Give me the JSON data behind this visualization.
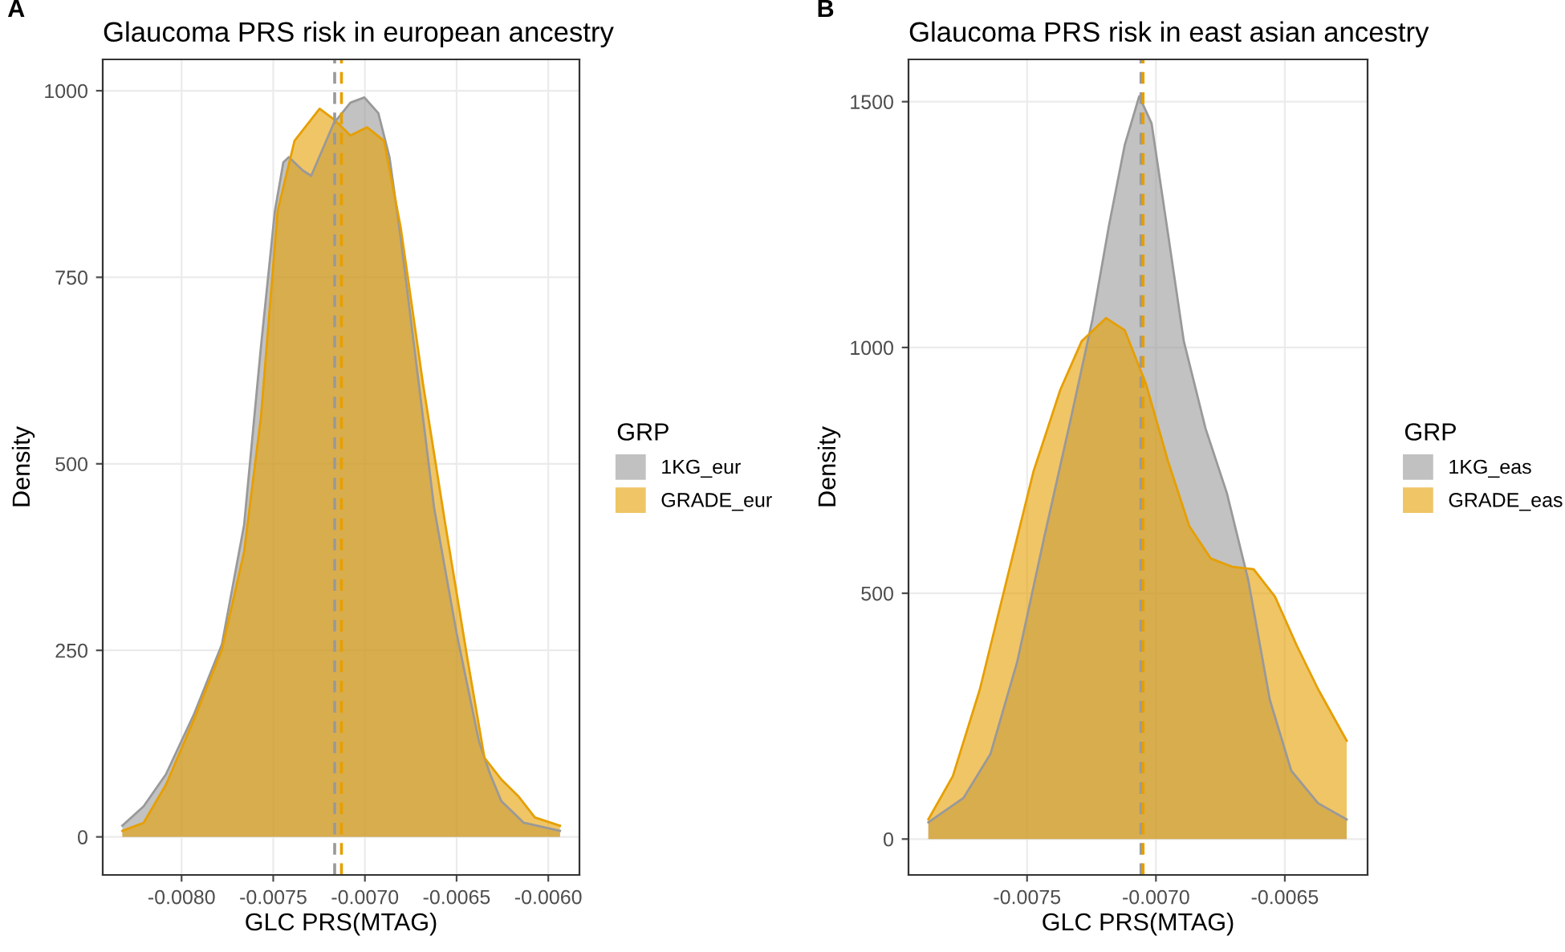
{
  "chart_data": [
    {
      "type": "area",
      "title": "Glaucoma PRS risk in european ancestry",
      "xlabel": "GLC PRS(MTAG)",
      "ylabel": "Density",
      "legend_title": "GRP",
      "legend": "right",
      "grid": true,
      "annotations": [
        "A"
      ],
      "xlim": [
        -0.00843,
        -0.00583
      ],
      "ylim": [
        -51,
        1042
      ],
      "xticks": [
        {
          "value": -0.008,
          "label": "-0.0080"
        },
        {
          "value": -0.0075,
          "label": "-0.0075"
        },
        {
          "value": -0.007,
          "label": "-0.0070"
        },
        {
          "value": -0.0065,
          "label": "-0.0065"
        },
        {
          "value": -0.006,
          "label": "-0.0060"
        }
      ],
      "yticks": [
        0,
        250,
        500,
        750,
        1000
      ],
      "series": [
        {
          "name": "1KG_eur",
          "color": "#999999",
          "x": [
            -0.008323,
            -0.008207,
            -0.008085,
            -0.007933,
            -0.00778,
            -0.007659,
            -0.007567,
            -0.007491,
            -0.007445,
            -0.007415,
            -0.007338,
            -0.007293,
            -0.007171,
            -0.007079,
            -0.007003,
            -0.006927,
            -0.006866,
            -0.006805,
            -0.006713,
            -0.006622,
            -0.0065,
            -0.006378,
            -0.006317,
            -0.006256,
            -0.006134,
            -0.005936
          ],
          "values": [
            15,
            41,
            84,
            164,
            258,
            418,
            657,
            839,
            904,
            911,
            893,
            886,
            956,
            984,
            991,
            970,
            911,
            803,
            621,
            440,
            273,
            128,
            84,
            48,
            19,
            8
          ]
        },
        {
          "name": "GRADE_eur",
          "color": "#E69F00",
          "x": [
            -0.008323,
            -0.008207,
            -0.008085,
            -0.007933,
            -0.00778,
            -0.007659,
            -0.007567,
            -0.007476,
            -0.007384,
            -0.007247,
            -0.007171,
            -0.007079,
            -0.006988,
            -0.006896,
            -0.006805,
            -0.006683,
            -0.006561,
            -0.006439,
            -0.006348,
            -0.006256,
            -0.006165,
            -0.006073,
            -0.005936
          ],
          "values": [
            8,
            19,
            70,
            157,
            251,
            382,
            563,
            839,
            933,
            976,
            962,
            940,
            951,
            933,
            817,
            607,
            418,
            236,
            106,
            77,
            55,
            26,
            15
          ]
        }
      ],
      "ref_lines": [
        {
          "axis": "x",
          "value": -0.007165,
          "color": "#999999",
          "line_style": "dashed"
        },
        {
          "axis": "x",
          "value": -0.007128,
          "color": "#E69F00",
          "line_style": "dashed"
        }
      ]
    },
    {
      "type": "area",
      "title": "Glaucoma PRS risk in east asian ancestry",
      "xlabel": "GLC PRS(MTAG)",
      "ylabel": "Density",
      "legend_title": "GRP",
      "legend": "right",
      "grid": true,
      "annotations": [
        "B"
      ],
      "xlim": [
        -0.00796,
        -0.006179
      ],
      "ylim": [
        -73,
        1586
      ],
      "xticks": [
        {
          "value": -0.0075,
          "label": "-0.0075"
        },
        {
          "value": -0.007,
          "label": "-0.0070"
        },
        {
          "value": -0.0065,
          "label": "-0.0065"
        }
      ],
      "yticks": [
        0,
        500,
        1000,
        1500
      ],
      "series": [
        {
          "name": "1KG_eas",
          "color": "#999999",
          "x": [
            -0.007883,
            -0.007746,
            -0.007642,
            -0.007538,
            -0.007433,
            -0.007329,
            -0.007246,
            -0.007183,
            -0.007121,
            -0.007065,
            -0.007017,
            -0.006954,
            -0.006892,
            -0.006808,
            -0.006725,
            -0.006642,
            -0.006558,
            -0.006475,
            -0.006371,
            -0.00626
          ],
          "values": [
            34,
            84,
            173,
            361,
            615,
            858,
            1058,
            1246,
            1412,
            1511,
            1456,
            1234,
            1013,
            836,
            704,
            527,
            283,
            139,
            73,
            40
          ]
        },
        {
          "name": "GRADE_eas",
          "color": "#E69F00",
          "x": [
            -0.007883,
            -0.007788,
            -0.007683,
            -0.007579,
            -0.007475,
            -0.007371,
            -0.007288,
            -0.007194,
            -0.007121,
            -0.007038,
            -0.006954,
            -0.006871,
            -0.006788,
            -0.006704,
            -0.006621,
            -0.006538,
            -0.006454,
            -0.006371,
            -0.00626
          ],
          "values": [
            40,
            128,
            305,
            527,
            748,
            914,
            1013,
            1060,
            1035,
            925,
            770,
            637,
            571,
            554,
            549,
            493,
            394,
            305,
            200
          ]
        }
      ],
      "ref_lines": [
        {
          "axis": "x",
          "value": -0.007058,
          "color": "#999999",
          "line_style": "dashed"
        },
        {
          "axis": "x",
          "value": -0.00705,
          "color": "#E69F00",
          "line_style": "dashed"
        }
      ]
    }
  ]
}
